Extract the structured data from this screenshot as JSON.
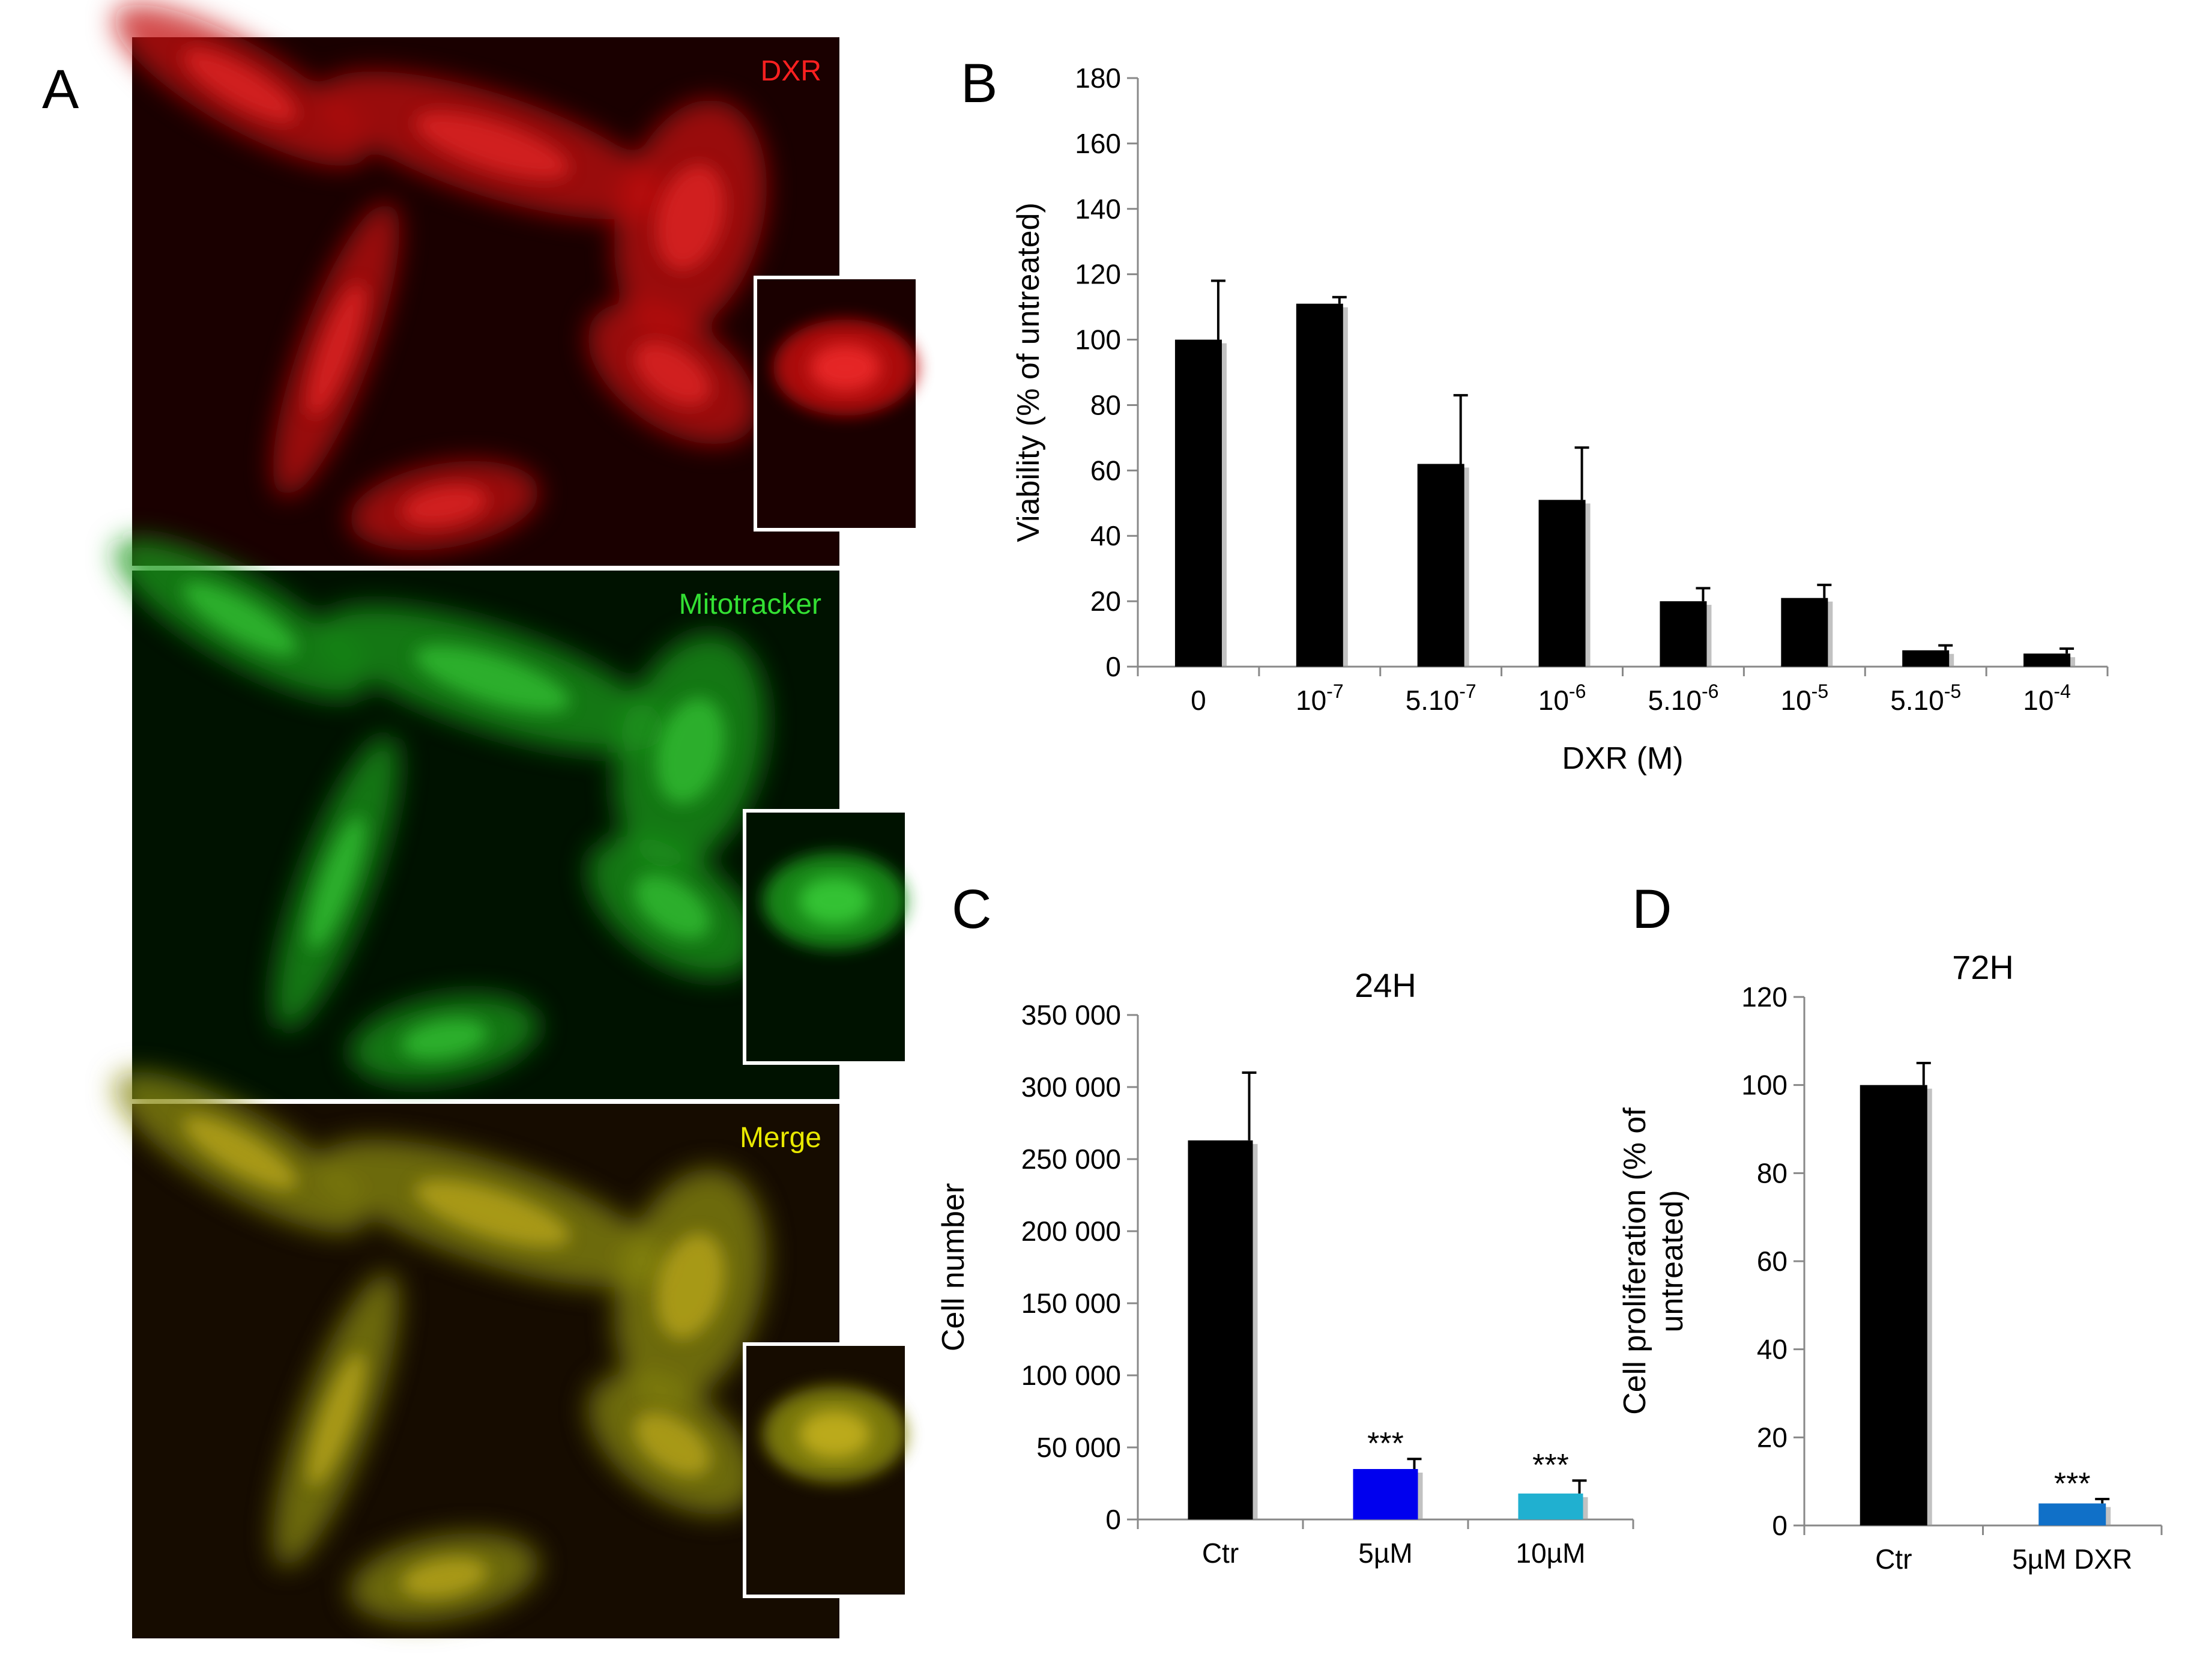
{
  "panels": {
    "a": {
      "label": "A",
      "channels": [
        {
          "name": "DXR",
          "color": "#ff2020"
        },
        {
          "name": "Mitotracker",
          "color": "#33e033"
        },
        {
          "name": "Merge",
          "color": "#e8e800"
        }
      ]
    },
    "b": {
      "label": "B"
    },
    "c": {
      "label": "C"
    },
    "d": {
      "label": "D"
    }
  },
  "chart_data": [
    {
      "id": "B",
      "type": "bar",
      "xlabel": "DXR (M)",
      "ylabel": "Viability (% of untreated)",
      "ylim": [
        0,
        180
      ],
      "yticks": [
        0,
        20,
        40,
        60,
        80,
        100,
        120,
        140,
        160,
        180
      ],
      "categories": [
        {
          "base": "0",
          "exp": ""
        },
        {
          "base": "10",
          "exp": "-7"
        },
        {
          "base": "5.10",
          "exp": "-7"
        },
        {
          "base": "10",
          "exp": "-6"
        },
        {
          "base": "5.10",
          "exp": "-6"
        },
        {
          "base": "10",
          "exp": "-5"
        },
        {
          "base": "5.10",
          "exp": "-5"
        },
        {
          "base": "10",
          "exp": "-4"
        }
      ],
      "values": [
        100,
        111,
        62,
        51,
        20,
        21,
        5,
        4
      ],
      "errors": [
        18,
        2,
        21,
        16,
        4,
        4,
        1.5,
        1.5
      ],
      "bar_colors": [
        "#000000",
        "#000000",
        "#000000",
        "#000000",
        "#000000",
        "#000000",
        "#000000",
        "#000000"
      ]
    },
    {
      "id": "C",
      "type": "bar",
      "title": "24H",
      "ylabel": "Cell number",
      "ylim": [
        0,
        350000
      ],
      "yticks": [
        "0",
        "50 000",
        "100 000",
        "150 000",
        "200 000",
        "250 000",
        "300 000",
        "350 000"
      ],
      "categories": [
        "Ctr",
        "5µM",
        "10µM"
      ],
      "values": [
        263000,
        35000,
        18000
      ],
      "errors": [
        47000,
        7000,
        9000
      ],
      "significance": [
        "",
        "***",
        "***"
      ],
      "bar_colors": [
        "#000000",
        "#0000ee",
        "#20b0d0"
      ]
    },
    {
      "id": "D",
      "type": "bar",
      "title": "72H",
      "ylabel_lines": [
        "Cell proliferation (% of",
        "untreated)"
      ],
      "ylim": [
        0,
        120
      ],
      "yticks": [
        0,
        20,
        40,
        60,
        80,
        100,
        120
      ],
      "categories": [
        "Ctr",
        "5µM DXR"
      ],
      "values": [
        100,
        5
      ],
      "errors": [
        5,
        1
      ],
      "significance": [
        "",
        "***"
      ],
      "bar_colors": [
        "#000000",
        "#1070c8"
      ]
    }
  ]
}
